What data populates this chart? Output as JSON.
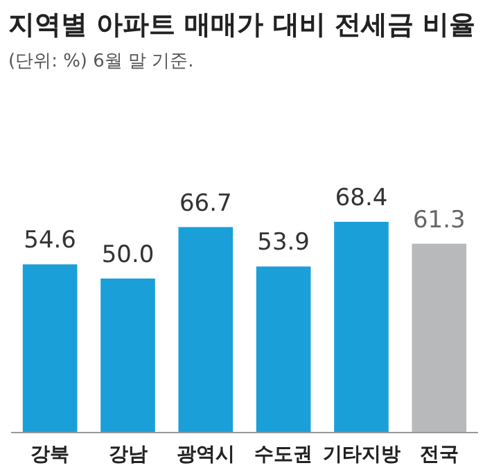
{
  "chart_data": {
    "type": "bar",
    "title": "지역별 아파트 매매가 대비 전세금 비율",
    "subtitle": "(단위: %) 6월 말 기준.",
    "categories": [
      "강북",
      "강남",
      "광역시",
      "수도권",
      "기타지방",
      "전국"
    ],
    "values": [
      54.6,
      50.0,
      66.7,
      53.9,
      68.4,
      61.3
    ],
    "colors": [
      "#1b9fd9",
      "#1b9fd9",
      "#1b9fd9",
      "#1b9fd9",
      "#1b9fd9",
      "#b8b9bb"
    ],
    "value_labels": [
      "54.6",
      "50.0",
      "66.7",
      "53.9",
      "68.4",
      "61.3"
    ]
  }
}
